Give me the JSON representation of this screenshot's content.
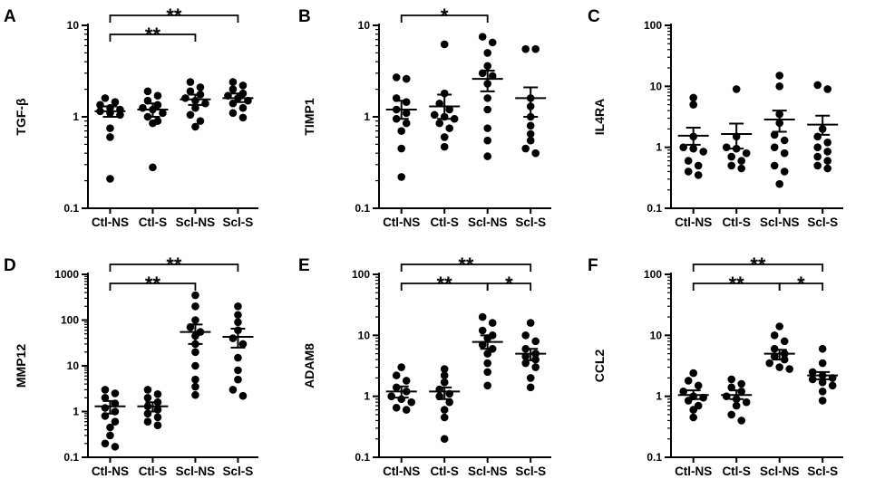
{
  "chart_data": [
    {
      "type": "scatter",
      "panel_label": "A",
      "ylabel": "TGF-β",
      "yscale": "log",
      "ylim": [
        0.1,
        10
      ],
      "ticks": [
        {
          "v": 0.1,
          "label": "0.1"
        },
        {
          "v": 1,
          "label": "1"
        },
        {
          "v": 10,
          "label": "10"
        }
      ],
      "categories": [
        "Ctl-NS",
        "Ctl-S",
        "Scl-NS",
        "Scl-S"
      ],
      "groups": [
        {
          "name": "Ctl-NS",
          "mean": 1.15,
          "sem_low": 1.0,
          "sem_high": 1.3,
          "points": [
            1.6,
            1.45,
            1.35,
            1.25,
            1.2,
            1.15,
            1.1,
            1.05,
            0.75,
            0.6,
            0.21
          ]
        },
        {
          "name": "Ctl-S",
          "mean": 1.2,
          "sem_low": 1.0,
          "sem_high": 1.4,
          "points": [
            1.9,
            1.7,
            1.5,
            1.35,
            1.25,
            1.2,
            1.1,
            1.0,
            0.9,
            0.85,
            0.28
          ]
        },
        {
          "name": "Scl-NS",
          "mean": 1.55,
          "sem_low": 1.35,
          "sem_high": 1.75,
          "points": [
            2.4,
            2.1,
            1.9,
            1.75,
            1.6,
            1.5,
            1.4,
            1.25,
            1.05,
            0.9,
            0.78
          ]
        },
        {
          "name": "Scl-S",
          "mean": 1.6,
          "sem_low": 1.45,
          "sem_high": 1.8,
          "points": [
            2.4,
            2.2,
            2.0,
            1.8,
            1.7,
            1.6,
            1.5,
            1.4,
            1.25,
            1.1,
            0.98
          ]
        }
      ],
      "significance": [
        {
          "from": "Ctl-NS",
          "to": "Scl-S",
          "label": "**"
        },
        {
          "from": "Ctl-NS",
          "to": "Scl-NS",
          "label": "**"
        }
      ]
    },
    {
      "type": "scatter",
      "panel_label": "B",
      "ylabel": "TIMP1",
      "yscale": "log",
      "ylim": [
        0.1,
        10
      ],
      "ticks": [
        {
          "v": 0.1,
          "label": "0.1"
        },
        {
          "v": 1,
          "label": "1"
        },
        {
          "v": 10,
          "label": "10"
        }
      ],
      "categories": [
        "Ctl-NS",
        "Ctl-S",
        "Scl-NS",
        "Scl-S"
      ],
      "groups": [
        {
          "name": "Ctl-NS",
          "mean": 1.2,
          "sem_low": 0.95,
          "sem_high": 1.5,
          "points": [
            2.7,
            2.6,
            1.6,
            1.45,
            1.2,
            1.1,
            0.95,
            0.85,
            0.7,
            0.45,
            0.22
          ]
        },
        {
          "name": "Ctl-S",
          "mean": 1.3,
          "sem_low": 0.95,
          "sem_high": 1.75,
          "points": [
            6.2,
            1.8,
            1.4,
            1.2,
            1.05,
            1.0,
            0.95,
            0.85,
            0.75,
            0.6,
            0.47
          ]
        },
        {
          "name": "Scl-NS",
          "mean": 2.6,
          "sem_low": 1.9,
          "sem_high": 3.2,
          "points": [
            7.5,
            6.5,
            5.0,
            3.6,
            3.0,
            2.8,
            2.3,
            1.6,
            1.2,
            0.75,
            0.55,
            0.37
          ]
        },
        {
          "name": "Scl-S",
          "mean": 1.6,
          "sem_low": 1.0,
          "sem_high": 2.1,
          "points": [
            5.5,
            5.5,
            1.6,
            1.3,
            1.0,
            0.8,
            0.65,
            0.55,
            0.45,
            0.4
          ]
        }
      ],
      "significance": [
        {
          "from": "Ctl-NS",
          "to": "Scl-NS",
          "label": "*"
        }
      ]
    },
    {
      "type": "scatter",
      "panel_label": "C",
      "ylabel": "IL4RA",
      "yscale": "log",
      "ylim": [
        0.1,
        100
      ],
      "ticks": [
        {
          "v": 0.1,
          "label": "0.1"
        },
        {
          "v": 1,
          "label": "1"
        },
        {
          "v": 10,
          "label": "10"
        },
        {
          "v": 100,
          "label": "100"
        }
      ],
      "categories": [
        "Ctl-NS",
        "Ctl-S",
        "Scl-NS",
        "Scl-S"
      ],
      "groups": [
        {
          "name": "Ctl-NS",
          "mean": 1.55,
          "sem_low": 1.1,
          "sem_high": 2.1,
          "points": [
            6.5,
            5.0,
            1.5,
            1.0,
            0.95,
            0.85,
            0.6,
            0.5,
            0.4,
            0.35
          ]
        },
        {
          "name": "Ctl-S",
          "mean": 1.65,
          "sem_low": 0.95,
          "sem_high": 2.45,
          "points": [
            9.0,
            1.5,
            1.0,
            0.95,
            0.8,
            0.7,
            0.6,
            0.5,
            0.45
          ]
        },
        {
          "name": "Scl-NS",
          "mean": 2.85,
          "sem_low": 1.8,
          "sem_high": 4.0,
          "points": [
            15.0,
            10.0,
            3.5,
            2.5,
            1.6,
            1.3,
            1.0,
            0.8,
            0.5,
            0.4,
            0.25
          ]
        },
        {
          "name": "Scl-S",
          "mean": 2.35,
          "sem_low": 1.6,
          "sem_high": 3.3,
          "points": [
            10.5,
            9.0,
            2.0,
            1.5,
            1.2,
            1.0,
            0.85,
            0.7,
            0.6,
            0.5,
            0.45
          ]
        }
      ],
      "significance": []
    },
    {
      "type": "scatter",
      "panel_label": "D",
      "ylabel": "MMP12",
      "yscale": "log",
      "ylim": [
        0.1,
        1000
      ],
      "ticks": [
        {
          "v": 0.1,
          "label": "0.1"
        },
        {
          "v": 1,
          "label": "1"
        },
        {
          "v": 10,
          "label": "10"
        },
        {
          "v": 100,
          "label": "100"
        },
        {
          "v": 1000,
          "label": "1000"
        }
      ],
      "categories": [
        "Ctl-NS",
        "Ctl-S",
        "Scl-NS",
        "Scl-S"
      ],
      "groups": [
        {
          "name": "Ctl-NS",
          "mean": 1.3,
          "sem_low": 0.9,
          "sem_high": 1.7,
          "points": [
            3.0,
            2.5,
            2.0,
            1.5,
            1.2,
            1.0,
            0.8,
            0.6,
            0.45,
            0.3,
            0.2,
            0.17
          ]
        },
        {
          "name": "Ctl-S",
          "mean": 1.3,
          "sem_low": 1.0,
          "sem_high": 1.6,
          "points": [
            3.0,
            2.4,
            2.0,
            1.6,
            1.3,
            1.1,
            0.9,
            0.75,
            0.6,
            0.5
          ]
        },
        {
          "name": "Scl-NS",
          "mean": 55,
          "sem_low": 30,
          "sem_high": 80,
          "points": [
            350,
            200,
            100,
            70,
            55,
            45,
            30,
            20,
            10,
            5,
            3.5,
            2.3
          ]
        },
        {
          "name": "Scl-S",
          "mean": 43,
          "sem_low": 25,
          "sem_high": 65,
          "points": [
            200,
            130,
            90,
            60,
            40,
            30,
            15,
            8,
            5,
            3,
            2.2
          ]
        }
      ],
      "significance": [
        {
          "from": "Ctl-NS",
          "to": "Scl-S",
          "label": "**"
        },
        {
          "from": "Ctl-NS",
          "to": "Scl-NS",
          "label": "**"
        }
      ]
    },
    {
      "type": "scatter",
      "panel_label": "E",
      "ylabel": "ADAM8",
      "yscale": "log",
      "ylim": [
        0.1,
        100
      ],
      "ticks": [
        {
          "v": 0.1,
          "label": "0.1"
        },
        {
          "v": 1,
          "label": "1"
        },
        {
          "v": 10,
          "label": "10"
        },
        {
          "v": 100,
          "label": "100"
        }
      ],
      "categories": [
        "Ctl-NS",
        "Ctl-S",
        "Scl-NS",
        "Scl-S"
      ],
      "groups": [
        {
          "name": "Ctl-NS",
          "mean": 1.2,
          "sem_low": 0.95,
          "sem_high": 1.45,
          "points": [
            3.0,
            2.2,
            1.8,
            1.4,
            1.2,
            1.0,
            0.9,
            0.8,
            0.65,
            0.6
          ]
        },
        {
          "name": "Ctl-S",
          "mean": 1.2,
          "sem_low": 0.9,
          "sem_high": 1.4,
          "points": [
            2.8,
            2.2,
            1.7,
            1.3,
            1.1,
            1.0,
            0.8,
            0.6,
            0.45,
            0.2
          ]
        },
        {
          "name": "Scl-NS",
          "mean": 7.8,
          "sem_low": 6.0,
          "sem_high": 10.0,
          "points": [
            20,
            16,
            12,
            10,
            9,
            7,
            6,
            5,
            3.5,
            2.5,
            1.5
          ]
        },
        {
          "name": "Scl-S",
          "mean": 5.0,
          "sem_low": 3.9,
          "sem_high": 6.0,
          "points": [
            16,
            10,
            8,
            6,
            5,
            4.5,
            4,
            3.5,
            3,
            2,
            1.4
          ]
        }
      ],
      "significance": [
        {
          "from": "Ctl-NS",
          "to": "Scl-S",
          "label": "**"
        },
        {
          "from": "Ctl-NS",
          "to": "Scl-NS",
          "label": "**"
        },
        {
          "from": "Scl-NS",
          "to": "Scl-S",
          "label": "*"
        }
      ]
    },
    {
      "type": "scatter",
      "panel_label": "F",
      "ylabel": "CCL2",
      "yscale": "log",
      "ylim": [
        0.1,
        100
      ],
      "ticks": [
        {
          "v": 0.1,
          "label": "0.1"
        },
        {
          "v": 1,
          "label": "1"
        },
        {
          "v": 10,
          "label": "10"
        },
        {
          "v": 100,
          "label": "100"
        }
      ],
      "categories": [
        "Ctl-NS",
        "Ctl-S",
        "Scl-NS",
        "Scl-S"
      ],
      "groups": [
        {
          "name": "Ctl-NS",
          "mean": 1.05,
          "sem_low": 0.9,
          "sem_high": 1.25,
          "points": [
            2.4,
            1.8,
            1.5,
            1.2,
            1.0,
            0.95,
            0.85,
            0.7,
            0.6,
            0.45
          ]
        },
        {
          "name": "Ctl-S",
          "mean": 1.05,
          "sem_low": 0.9,
          "sem_high": 1.25,
          "points": [
            1.9,
            1.6,
            1.4,
            1.2,
            1.0,
            0.9,
            0.8,
            0.7,
            0.5,
            0.4
          ]
        },
        {
          "name": "Scl-NS",
          "mean": 5.0,
          "sem_low": 4.0,
          "sem_high": 5.8,
          "points": [
            14,
            10,
            8,
            6,
            5,
            4.5,
            4,
            3.5,
            3,
            2.8
          ]
        },
        {
          "name": "Scl-S",
          "mean": 2.2,
          "sem_low": 1.9,
          "sem_high": 2.5,
          "points": [
            6.0,
            3.5,
            2.5,
            2.2,
            2.0,
            1.9,
            1.7,
            1.5,
            1.2,
            0.85
          ]
        }
      ],
      "significance": [
        {
          "from": "Ctl-NS",
          "to": "Scl-S",
          "label": "**"
        },
        {
          "from": "Ctl-NS",
          "to": "Scl-NS",
          "label": "**"
        },
        {
          "from": "Scl-NS",
          "to": "Scl-S",
          "label": "*"
        }
      ]
    }
  ]
}
